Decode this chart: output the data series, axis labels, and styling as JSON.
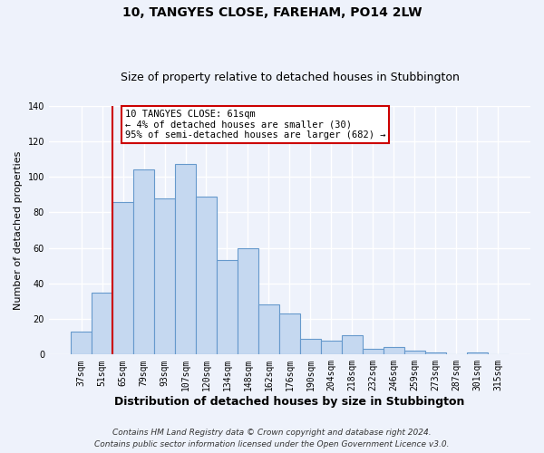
{
  "title": "10, TANGYES CLOSE, FAREHAM, PO14 2LW",
  "subtitle": "Size of property relative to detached houses in Stubbington",
  "xlabel": "Distribution of detached houses by size in Stubbington",
  "ylabel": "Number of detached properties",
  "bar_labels": [
    "37sqm",
    "51sqm",
    "65sqm",
    "79sqm",
    "93sqm",
    "107sqm",
    "120sqm",
    "134sqm",
    "148sqm",
    "162sqm",
    "176sqm",
    "190sqm",
    "204sqm",
    "218sqm",
    "232sqm",
    "246sqm",
    "259sqm",
    "273sqm",
    "287sqm",
    "301sqm",
    "315sqm"
  ],
  "bar_values": [
    13,
    35,
    86,
    104,
    88,
    107,
    89,
    53,
    60,
    28,
    23,
    9,
    8,
    11,
    3,
    4,
    2,
    1,
    0,
    1,
    0
  ],
  "bar_color": "#c5d8f0",
  "bar_edge_color": "#6699cc",
  "vline_index": 2,
  "vline_color": "#cc0000",
  "ylim": [
    0,
    140
  ],
  "yticks": [
    0,
    20,
    40,
    60,
    80,
    100,
    120,
    140
  ],
  "annotation_text": "10 TANGYES CLOSE: 61sqm\n← 4% of detached houses are smaller (30)\n95% of semi-detached houses are larger (682) →",
  "annotation_box_color": "#ffffff",
  "annotation_box_edge": "#cc0000",
  "footer_line1": "Contains HM Land Registry data © Crown copyright and database right 2024.",
  "footer_line2": "Contains public sector information licensed under the Open Government Licence v3.0.",
  "background_color": "#eef2fb",
  "grid_color": "#ffffff",
  "title_fontsize": 10,
  "subtitle_fontsize": 9,
  "xlabel_fontsize": 9,
  "ylabel_fontsize": 8,
  "tick_fontsize": 7,
  "annotation_fontsize": 7.5,
  "footer_fontsize": 6.5
}
